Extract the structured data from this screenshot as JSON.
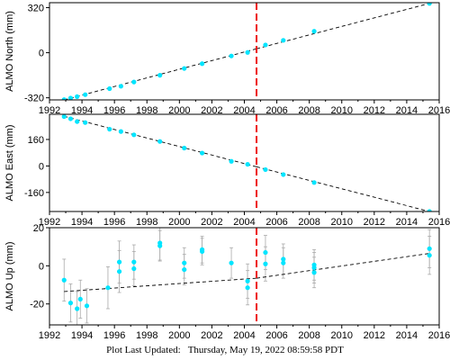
{
  "footer": {
    "label": "Plot Last Updated:",
    "date": "Thursday, May 19, 2022 08:59:58 PDT"
  },
  "chart_data": [
    {
      "type": "scatter",
      "ylabel": "ALMO North (mm)",
      "xlim": [
        1992,
        2016
      ],
      "ylim": [
        -335,
        355
      ],
      "yticks": [
        -320,
        0,
        320
      ],
      "xticks": [
        1992,
        1994,
        1996,
        1998,
        2000,
        2002,
        2004,
        2006,
        2008,
        2010,
        2012,
        2014,
        2016
      ],
      "event_line_x": 2004.75,
      "fit_segments": [
        {
          "x": [
            1992.9,
            2004.75
          ],
          "y": [
            -335,
            28
          ]
        },
        {
          "x": [
            2004.75,
            2015.4
          ],
          "y": [
            28,
            350
          ]
        }
      ],
      "points": [
        {
          "x": 1992.9,
          "y": -333,
          "err": 6
        },
        {
          "x": 1993.3,
          "y": -322,
          "err": 6
        },
        {
          "x": 1993.7,
          "y": -312,
          "err": 6
        },
        {
          "x": 1994.2,
          "y": -298,
          "err": 6
        },
        {
          "x": 1995.7,
          "y": -255,
          "err": 6
        },
        {
          "x": 1996.4,
          "y": -238,
          "err": 6
        },
        {
          "x": 1997.2,
          "y": -208,
          "err": 6
        },
        {
          "x": 1998.8,
          "y": -160,
          "err": 6
        },
        {
          "x": 2000.3,
          "y": -112,
          "err": 6
        },
        {
          "x": 2001.4,
          "y": -78,
          "err": 6
        },
        {
          "x": 2003.2,
          "y": -23,
          "err": 6
        },
        {
          "x": 2004.2,
          "y": 2,
          "err": 6
        },
        {
          "x": 2005.3,
          "y": 55,
          "err": 6
        },
        {
          "x": 2006.4,
          "y": 88,
          "err": 6
        },
        {
          "x": 2008.3,
          "y": 152,
          "err": 6
        },
        {
          "x": 2015.4,
          "y": 350,
          "err": 6
        }
      ]
    },
    {
      "type": "scatter",
      "ylabel": "ALMO East (mm)",
      "xlim": [
        1992,
        2016
      ],
      "ylim": [
        -275,
        312
      ],
      "yticks": [
        -160,
        0,
        160
      ],
      "xticks": [
        1992,
        1994,
        1996,
        1998,
        2000,
        2002,
        2004,
        2006,
        2008,
        2010,
        2012,
        2014,
        2016
      ],
      "event_line_x": 2004.75,
      "fit_segments": [
        {
          "x": [
            1992.9,
            2004.75
          ],
          "y": [
            300,
            -5
          ]
        },
        {
          "x": [
            2004.75,
            2015.4
          ],
          "y": [
            -5,
            -275
          ]
        }
      ],
      "points": [
        {
          "x": 1992.9,
          "y": 298,
          "err": 6
        },
        {
          "x": 1993.3,
          "y": 285,
          "err": 6
        },
        {
          "x": 1993.7,
          "y": 268,
          "err": 6
        },
        {
          "x": 1994.2,
          "y": 262,
          "err": 6
        },
        {
          "x": 1995.7,
          "y": 222,
          "err": 6
        },
        {
          "x": 1996.4,
          "y": 208,
          "err": 6
        },
        {
          "x": 1997.2,
          "y": 188,
          "err": 6
        },
        {
          "x": 1998.8,
          "y": 148,
          "err": 6
        },
        {
          "x": 2000.3,
          "y": 108,
          "err": 6
        },
        {
          "x": 2001.4,
          "y": 78,
          "err": 6
        },
        {
          "x": 2003.2,
          "y": 28,
          "err": 6
        },
        {
          "x": 2004.2,
          "y": 10,
          "err": 6
        },
        {
          "x": 2005.3,
          "y": -22,
          "err": 6
        },
        {
          "x": 2006.4,
          "y": -52,
          "err": 6
        },
        {
          "x": 2008.3,
          "y": -100,
          "err": 6
        },
        {
          "x": 2015.4,
          "y": -275,
          "err": 6
        }
      ]
    },
    {
      "type": "scatter",
      "ylabel": "ALMO Up (mm)",
      "xlim": [
        1992,
        2016
      ],
      "ylim": [
        -31,
        20
      ],
      "yticks": [
        -20,
        0,
        20
      ],
      "xticks": [
        1992,
        1994,
        1996,
        1998,
        2000,
        2002,
        2004,
        2006,
        2008,
        2010,
        2012,
        2014,
        2016
      ],
      "event_line_x": 2004.75,
      "fit_segments": [
        {
          "x": [
            1992.9,
            2004.75
          ],
          "y": [
            -13.5,
            -6.5
          ]
        },
        {
          "x": [
            2004.75,
            2015.4
          ],
          "y": [
            -6.5,
            6.5
          ]
        }
      ],
      "points": [
        {
          "x": 1992.9,
          "y": -7.5,
          "err": 11
        },
        {
          "x": 1993.3,
          "y": -19.5,
          "err": 10
        },
        {
          "x": 1993.7,
          "y": -22.5,
          "err": 9
        },
        {
          "x": 1993.9,
          "y": -17.5,
          "err": 10
        },
        {
          "x": 1994.3,
          "y": -21,
          "err": 9
        },
        {
          "x": 1995.6,
          "y": -11.5,
          "err": 11
        },
        {
          "x": 1996.3,
          "y": 2,
          "err": 11
        },
        {
          "x": 1996.3,
          "y": -3,
          "err": 11
        },
        {
          "x": 1997.2,
          "y": 2,
          "err": 9
        },
        {
          "x": 1997.2,
          "y": -1.5,
          "err": 9
        },
        {
          "x": 1998.8,
          "y": 12,
          "err": 9
        },
        {
          "x": 1998.8,
          "y": 10.5,
          "err": 8
        },
        {
          "x": 2000.3,
          "y": 1.5,
          "err": 8
        },
        {
          "x": 2000.3,
          "y": -2,
          "err": 8
        },
        {
          "x": 2001.4,
          "y": 8.5,
          "err": 7
        },
        {
          "x": 2001.4,
          "y": 7.5,
          "err": 7
        },
        {
          "x": 2003.2,
          "y": 1.5,
          "err": 8
        },
        {
          "x": 2004.2,
          "y": -8,
          "err": 9
        },
        {
          "x": 2004.2,
          "y": -11.5,
          "err": 9
        },
        {
          "x": 2005.3,
          "y": 7,
          "err": 9
        },
        {
          "x": 2005.3,
          "y": 1,
          "err": 9
        },
        {
          "x": 2006.4,
          "y": 3.5,
          "err": 8
        },
        {
          "x": 2006.4,
          "y": 1.5,
          "err": 8
        },
        {
          "x": 2008.3,
          "y": 0.5,
          "err": 8
        },
        {
          "x": 2008.3,
          "y": -1,
          "err": 8
        },
        {
          "x": 2008.3,
          "y": -3.5,
          "err": 8
        },
        {
          "x": 2015.4,
          "y": 9,
          "err": 10
        },
        {
          "x": 2015.4,
          "y": 5.5,
          "err": 10
        }
      ]
    }
  ],
  "colors": {
    "point": "#00e5ff",
    "error_bar": "#aaaaaa",
    "fit_line": "#000000",
    "event_line": "#ee1111"
  }
}
